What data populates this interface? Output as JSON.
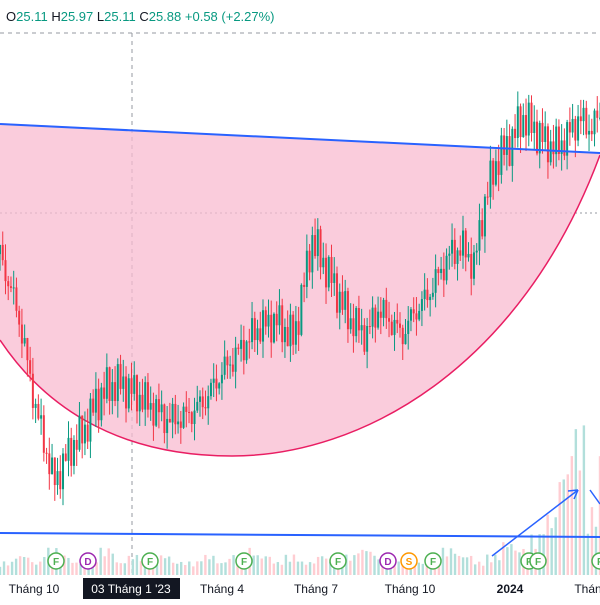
{
  "ohlc": {
    "o_label": "O",
    "o": "25.11",
    "h_label": "H",
    "h": "25.97",
    "l_label": "L",
    "l": "25.11",
    "c_label": "C",
    "c": "25.88",
    "change": "+0.58 (+2.27%)"
  },
  "colors": {
    "up": "#089981",
    "down": "#f23645",
    "trend": "#2962ff",
    "cup_fill": "#f8bbd0",
    "cup_stroke": "#e91e63",
    "volume_up": "#b2dfdb",
    "volume_down": "#ffcdd2",
    "event_green": "#4caf50",
    "event_purple": "#9c27b0",
    "event_orange": "#ff9800"
  },
  "x_axis": {
    "labels": [
      {
        "text": "Tháng 10",
        "bold": false
      },
      {
        "text": "Tháng 4",
        "bold": false
      },
      {
        "text": "Tháng 7",
        "bold": false
      },
      {
        "text": "Tháng 10",
        "bold": false
      },
      {
        "text": "2024",
        "bold": true
      },
      {
        "text": "Thán",
        "bold": false
      }
    ],
    "crosshair_label": "03 Tháng 1 '23"
  },
  "events": [
    {
      "letter": "F",
      "type": "green"
    },
    {
      "letter": "D",
      "type": "purple"
    },
    {
      "letter": "F",
      "type": "green"
    },
    {
      "letter": "F",
      "type": "green"
    },
    {
      "letter": "F",
      "type": "green"
    },
    {
      "letter": "D",
      "type": "purple"
    },
    {
      "letter": "S",
      "type": "orange"
    },
    {
      "letter": "F",
      "type": "green"
    },
    {
      "letter": "F",
      "type": "green"
    },
    {
      "letter": "F",
      "type": "green"
    },
    {
      "letter": "F",
      "type": "green"
    }
  ],
  "chart_data": {
    "type": "line",
    "title": "",
    "xlabel": "",
    "ylabel": "",
    "x_range": [
      "2022-09",
      "2024-03"
    ],
    "y_range": [
      15,
      28
    ],
    "grid": false,
    "series": [
      {
        "x": [
          0.0,
          0.03,
          0.06,
          0.09,
          0.12,
          0.14,
          0.16,
          0.18,
          0.2,
          0.22,
          0.25,
          0.28,
          0.31,
          0.34,
          0.37,
          0.4,
          0.43,
          0.46,
          0.49,
          0.52,
          0.55,
          0.58,
          0.61,
          0.63,
          0.65,
          0.67,
          0.69,
          0.71,
          0.73,
          0.75,
          0.77,
          0.79,
          0.81,
          0.83,
          0.85,
          0.87,
          0.89,
          0.91,
          0.93,
          0.95,
          0.965,
          0.98,
          1.0
        ],
        "values": [
          22.2,
          20.6,
          18.0,
          16.0,
          17.0,
          17.4,
          18.2,
          18.6,
          18.7,
          18.5,
          18.1,
          17.7,
          17.8,
          18.2,
          19.0,
          19.6,
          20.2,
          20.4,
          19.9,
          22.6,
          21.6,
          20.5,
          20.0,
          20.7,
          20.4,
          20.0,
          20.6,
          21.0,
          21.6,
          22.2,
          22.4,
          21.9,
          23.8,
          24.8,
          25.2,
          25.9,
          25.6,
          25.2,
          25.1,
          25.5,
          25.9,
          25.6,
          25.88
        ]
      }
    ],
    "volume": [
      2,
      3,
      2,
      4,
      3,
      2,
      3,
      4,
      2,
      3,
      2,
      3,
      2,
      2,
      3,
      2,
      3,
      4,
      3,
      2,
      3,
      2,
      3,
      2,
      3,
      4,
      3,
      2,
      3,
      2,
      3,
      4,
      3,
      2,
      3,
      5,
      4,
      6,
      9,
      16,
      22,
      10,
      18
    ],
    "annotations": [
      "upper resistance trendline",
      "cup pattern (rounded bottom)",
      "lower support line",
      "volume breakout arrow"
    ]
  }
}
